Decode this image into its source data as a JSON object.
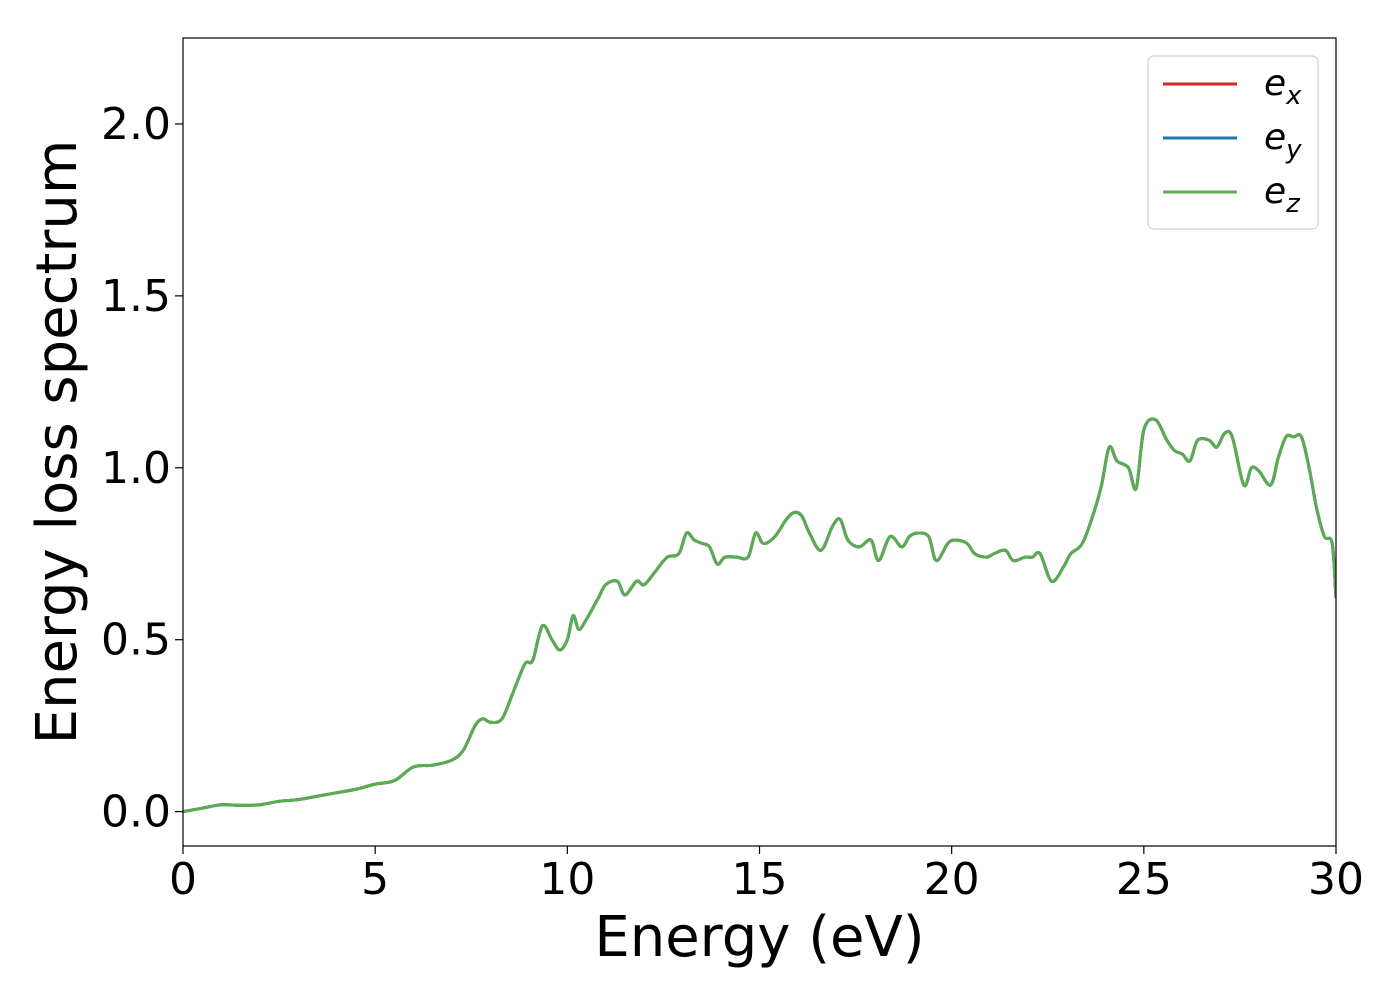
{
  "chart_data": {
    "type": "line",
    "title": "",
    "xlabel": "Energy (eV)",
    "ylabel": "Energy loss spectrum",
    "xlim": [
      0,
      30
    ],
    "ylim": [
      -0.1,
      2.25
    ],
    "xticks": [
      0,
      5,
      10,
      15,
      20,
      25,
      30
    ],
    "xtick_labels": [
      "0",
      "5",
      "10",
      "15",
      "20",
      "25",
      "30"
    ],
    "yticks": [
      0.0,
      0.5,
      1.0,
      1.5,
      2.0
    ],
    "ytick_labels": [
      "0.0",
      "0.5",
      "1.0",
      "1.5",
      "2.0"
    ],
    "grid": false,
    "legend_position": "top-right",
    "x": [
      0.0,
      0.5,
      1.0,
      1.5,
      2.0,
      2.5,
      3.0,
      3.5,
      4.0,
      4.5,
      5.0,
      5.5,
      6.0,
      6.5,
      7.0,
      7.3,
      7.6,
      7.8,
      8.0,
      8.3,
      8.6,
      8.9,
      9.1,
      9.35,
      9.6,
      9.8,
      10.0,
      10.15,
      10.3,
      10.5,
      10.8,
      11.0,
      11.3,
      11.5,
      11.8,
      12.0,
      12.3,
      12.6,
      12.9,
      13.1,
      13.3,
      13.5,
      13.7,
      13.9,
      14.1,
      14.4,
      14.7,
      14.9,
      15.1,
      15.4,
      15.7,
      15.9,
      16.1,
      16.3,
      16.6,
      16.9,
      17.1,
      17.3,
      17.6,
      17.9,
      18.1,
      18.4,
      18.7,
      18.9,
      19.1,
      19.4,
      19.6,
      19.9,
      20.1,
      20.4,
      20.6,
      20.9,
      21.1,
      21.4,
      21.6,
      21.9,
      22.1,
      22.3,
      22.6,
      22.9,
      23.1,
      23.4,
      23.7,
      23.9,
      24.1,
      24.3,
      24.6,
      24.8,
      25.0,
      25.3,
      25.6,
      25.8,
      26.0,
      26.2,
      26.4,
      26.7,
      26.9,
      27.1,
      27.3,
      27.6,
      27.8,
      28.0,
      28.3,
      28.5,
      28.7,
      28.9,
      29.1,
      29.3,
      29.5,
      29.7,
      29.9,
      30.0
    ],
    "series": [
      {
        "name": "e_x",
        "label": "e",
        "sub": "x",
        "color": "#d62728",
        "values": [
          0.0,
          0.01,
          0.02,
          0.018,
          0.02,
          0.03,
          0.035,
          0.045,
          0.055,
          0.065,
          0.08,
          0.09,
          0.13,
          0.135,
          0.15,
          0.18,
          0.25,
          0.27,
          0.26,
          0.27,
          0.35,
          0.43,
          0.44,
          0.54,
          0.5,
          0.47,
          0.5,
          0.57,
          0.53,
          0.56,
          0.62,
          0.66,
          0.67,
          0.63,
          0.67,
          0.66,
          0.7,
          0.74,
          0.75,
          0.81,
          0.79,
          0.78,
          0.77,
          0.72,
          0.74,
          0.74,
          0.74,
          0.81,
          0.78,
          0.8,
          0.85,
          0.87,
          0.86,
          0.81,
          0.76,
          0.83,
          0.85,
          0.79,
          0.77,
          0.79,
          0.73,
          0.8,
          0.77,
          0.8,
          0.81,
          0.8,
          0.73,
          0.78,
          0.79,
          0.78,
          0.75,
          0.74,
          0.75,
          0.76,
          0.73,
          0.74,
          0.74,
          0.75,
          0.67,
          0.71,
          0.75,
          0.78,
          0.87,
          0.95,
          1.06,
          1.02,
          1.0,
          0.94,
          1.11,
          1.14,
          1.08,
          1.05,
          1.04,
          1.02,
          1.08,
          1.08,
          1.06,
          1.1,
          1.09,
          0.95,
          1.0,
          0.99,
          0.95,
          1.03,
          1.09,
          1.09,
          1.09,
          1.0,
          0.88,
          0.8,
          0.78,
          0.62
        ]
      },
      {
        "name": "e_y",
        "label": "e",
        "sub": "y",
        "color": "#1f77b4",
        "values": [
          0.0,
          0.01,
          0.02,
          0.018,
          0.02,
          0.03,
          0.035,
          0.045,
          0.055,
          0.065,
          0.08,
          0.09,
          0.13,
          0.135,
          0.15,
          0.18,
          0.25,
          0.27,
          0.26,
          0.27,
          0.35,
          0.43,
          0.44,
          0.54,
          0.5,
          0.47,
          0.5,
          0.57,
          0.53,
          0.56,
          0.62,
          0.66,
          0.67,
          0.63,
          0.67,
          0.66,
          0.7,
          0.74,
          0.75,
          0.81,
          0.79,
          0.78,
          0.77,
          0.72,
          0.74,
          0.74,
          0.74,
          0.81,
          0.78,
          0.8,
          0.85,
          0.87,
          0.86,
          0.81,
          0.76,
          0.83,
          0.85,
          0.79,
          0.77,
          0.79,
          0.73,
          0.8,
          0.77,
          0.8,
          0.81,
          0.8,
          0.73,
          0.78,
          0.79,
          0.78,
          0.75,
          0.74,
          0.75,
          0.76,
          0.73,
          0.74,
          0.74,
          0.75,
          0.67,
          0.71,
          0.75,
          0.78,
          0.87,
          0.95,
          1.06,
          1.02,
          1.0,
          0.94,
          1.11,
          1.14,
          1.08,
          1.05,
          1.04,
          1.02,
          1.08,
          1.08,
          1.06,
          1.1,
          1.09,
          0.95,
          1.0,
          0.99,
          0.95,
          1.03,
          1.09,
          1.09,
          1.09,
          1.0,
          0.88,
          0.8,
          0.78,
          0.62
        ]
      },
      {
        "name": "e_z",
        "label": "e",
        "sub": "z",
        "color": "#5aad4f",
        "values": [
          0.0,
          0.01,
          0.02,
          0.018,
          0.02,
          0.03,
          0.035,
          0.045,
          0.055,
          0.065,
          0.08,
          0.09,
          0.13,
          0.135,
          0.15,
          0.18,
          0.25,
          0.27,
          0.26,
          0.27,
          0.35,
          0.43,
          0.44,
          0.54,
          0.5,
          0.47,
          0.5,
          0.57,
          0.53,
          0.56,
          0.62,
          0.66,
          0.67,
          0.63,
          0.67,
          0.66,
          0.7,
          0.74,
          0.75,
          0.81,
          0.79,
          0.78,
          0.77,
          0.72,
          0.74,
          0.74,
          0.74,
          0.81,
          0.78,
          0.8,
          0.85,
          0.87,
          0.86,
          0.81,
          0.76,
          0.83,
          0.85,
          0.79,
          0.77,
          0.79,
          0.73,
          0.8,
          0.77,
          0.8,
          0.81,
          0.8,
          0.73,
          0.78,
          0.79,
          0.78,
          0.75,
          0.74,
          0.75,
          0.76,
          0.73,
          0.74,
          0.74,
          0.75,
          0.67,
          0.71,
          0.75,
          0.78,
          0.87,
          0.95,
          1.06,
          1.02,
          1.0,
          0.94,
          1.11,
          1.14,
          1.08,
          1.05,
          1.04,
          1.02,
          1.08,
          1.08,
          1.06,
          1.1,
          1.09,
          0.95,
          1.0,
          0.99,
          0.95,
          1.03,
          1.09,
          1.09,
          1.09,
          1.0,
          0.88,
          0.8,
          0.78,
          0.62
        ]
      }
    ]
  }
}
